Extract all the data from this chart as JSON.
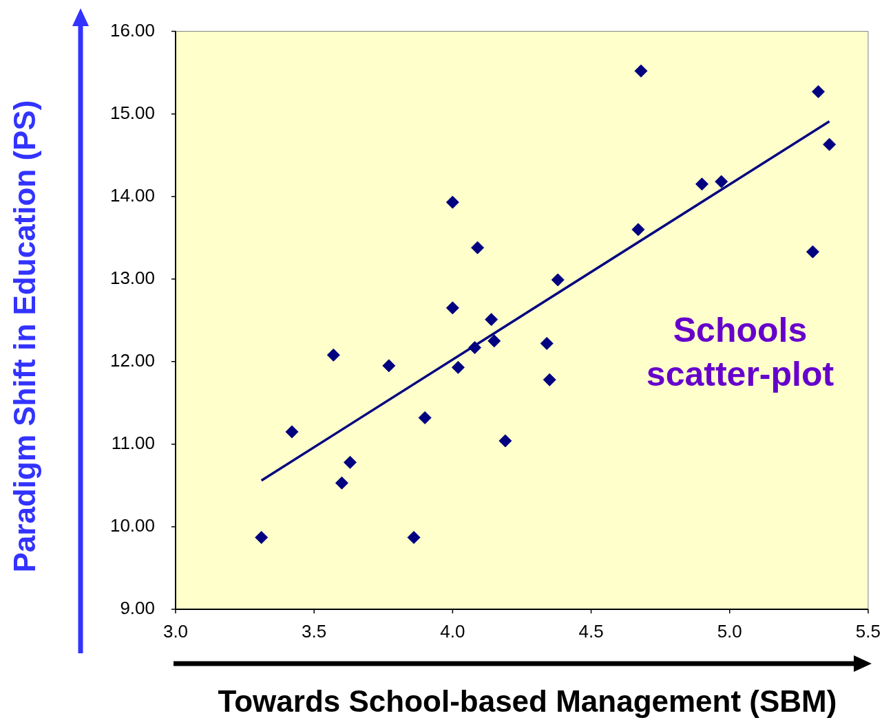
{
  "chart_data": {
    "type": "scatter",
    "xlabel": "Towards School-based Management (SBM)",
    "ylabel": "Paradigm Shift in Education (PS)",
    "annotations": [
      "Schools scatter-plot"
    ],
    "xlim": [
      3.0,
      5.5
    ],
    "xticks": [
      {
        "value": 3.0,
        "label": "3.0"
      },
      {
        "value": 3.5,
        "label": "3.5"
      },
      {
        "value": 4.0,
        "label": "4.0"
      },
      {
        "value": 4.5,
        "label": "4.5"
      },
      {
        "value": 5.0,
        "label": "5.0"
      },
      {
        "value": 5.5,
        "label": "5.5"
      }
    ],
    "ylim": [
      9,
      16
    ],
    "yticks": [
      {
        "value": 9,
        "label": "9.00"
      },
      {
        "value": 10,
        "label": "10.00"
      },
      {
        "value": 11,
        "label": "11.00"
      },
      {
        "value": 12,
        "label": "12.00"
      },
      {
        "value": 13,
        "label": "13.00"
      },
      {
        "value": 14,
        "label": "14.00"
      },
      {
        "value": 15,
        "label": "15.00"
      },
      {
        "value": 16,
        "label": "16.00"
      }
    ],
    "grid": false,
    "legend": false,
    "marker": "diamond",
    "series": [
      {
        "type": "scatter",
        "color": "#000080",
        "x": [
          3.31,
          3.42,
          3.57,
          3.6,
          3.63,
          3.77,
          3.86,
          3.9,
          4.0,
          4.0,
          4.02,
          4.08,
          4.09,
          4.14,
          4.15,
          4.19,
          4.34,
          4.35,
          4.38,
          4.67,
          4.68,
          4.9,
          4.97,
          5.3,
          5.32,
          5.36
        ],
        "values": [
          9.87,
          11.15,
          12.08,
          10.53,
          10.78,
          11.95,
          9.87,
          11.32,
          13.93,
          12.65,
          11.93,
          12.17,
          13.38,
          12.51,
          12.25,
          11.04,
          12.22,
          11.78,
          12.99,
          13.6,
          15.52,
          14.15,
          14.18,
          13.33,
          15.27,
          14.63
        ]
      },
      {
        "type": "line",
        "color": "#000080",
        "marker": "none",
        "line_style": "solid",
        "x": [
          3.31,
          5.36
        ],
        "values": [
          10.56,
          14.91
        ]
      }
    ]
  }
}
